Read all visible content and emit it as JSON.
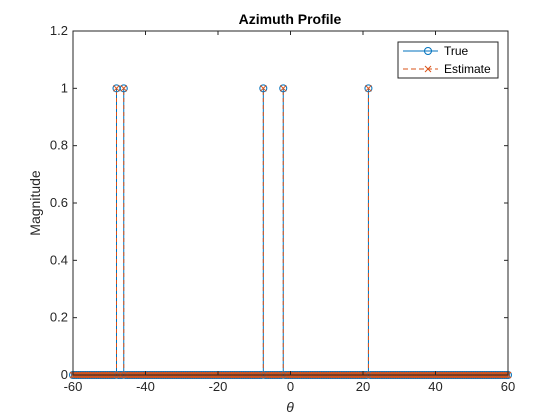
{
  "chart_data": {
    "type": "stem",
    "title": "Azimuth Profile",
    "xlabel": "θ",
    "ylabel": "Magnitude",
    "xlim": [
      -60,
      60
    ],
    "ylim": [
      0,
      1.2
    ],
    "xticks": [
      -60,
      -40,
      -20,
      0,
      20,
      40,
      60
    ],
    "xtick_labels": [
      "-60",
      "-40",
      "-20",
      "0",
      "20",
      "40",
      "60"
    ],
    "yticks": [
      0,
      0.2,
      0.4,
      0.6,
      0.8,
      1,
      1.2
    ],
    "ytick_labels": [
      "0",
      "0.2",
      "0.4",
      "0.6",
      "0.8",
      "1",
      "1.2"
    ],
    "x_range": {
      "start": -60,
      "end": 60,
      "step": 0.5
    },
    "legend": {
      "position": "top-right"
    },
    "series": [
      {
        "name": "True",
        "marker": "circle",
        "line_style": "solid",
        "color": "#0072BD",
        "nonzero": [
          {
            "x": -48,
            "y": 1
          },
          {
            "x": -46,
            "y": 1
          },
          {
            "x": -7.5,
            "y": 1
          },
          {
            "x": -2,
            "y": 1
          },
          {
            "x": 21.5,
            "y": 1
          }
        ],
        "baseline_value": 0
      },
      {
        "name": "Estimate",
        "marker": "x",
        "line_style": "dashed",
        "color": "#D95319",
        "nonzero": [
          {
            "x": -48,
            "y": 1
          },
          {
            "x": -46,
            "y": 1
          },
          {
            "x": -7.5,
            "y": 1
          },
          {
            "x": -2,
            "y": 1
          },
          {
            "x": 21.5,
            "y": 1
          }
        ],
        "baseline_value": 0
      }
    ]
  }
}
